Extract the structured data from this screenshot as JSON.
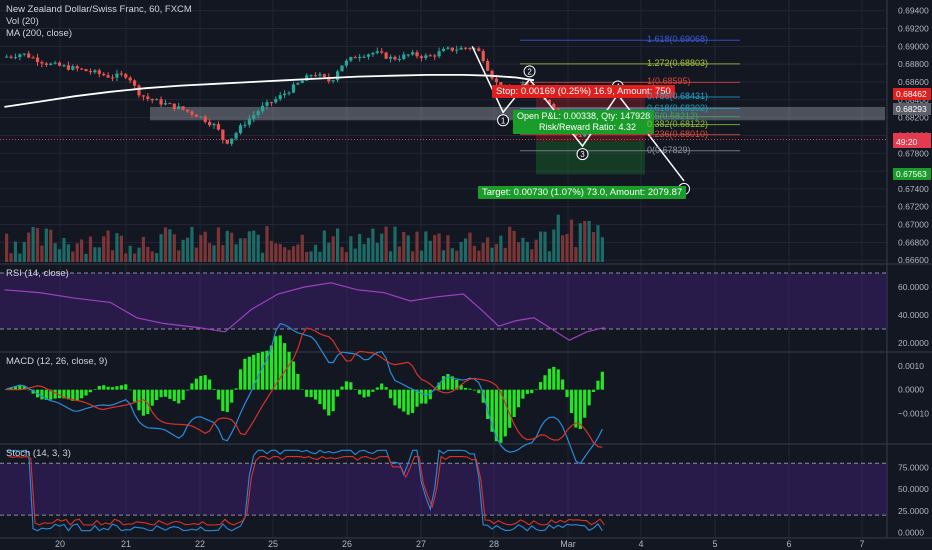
{
  "header": {
    "symbol_title": "New Zealand Dollar/Swiss Franc, 60, FXCM",
    "vol_label": "Vol (20)",
    "ma_label": "MA (200, close)"
  },
  "panes": {
    "rsi_label": "RSI (14, close)",
    "macd_label": "MACD (12, 26, close, 9)",
    "stoch_label": "Stoch (14, 3, 3)"
  },
  "trade": {
    "stop_label": "Stop: 0.00169 (0.25%) 16.9, Amount: 750",
    "open_label": "Open P&L: 0.00338, Qty: 147928",
    "ratio_label": "Risk/Reward Ratio: 4.32",
    "target_label": "Target: 0.00730 (1.07%) 73.0, Amount: 2079.87"
  },
  "fib_levels": [
    {
      "label": "1.618(0.69068)",
      "color": "#3b5bdb",
      "value": 0.69068
    },
    {
      "label": "1.272(0.68803)",
      "color": "#a7c53a",
      "value": 0.68803
    },
    {
      "label": "1(0.68595)",
      "color": "#e0443a",
      "value": 0.68595
    },
    {
      "label": "0.786(0.68431)",
      "color": "#26a2c9",
      "value": 0.68431
    },
    {
      "label": "0.618(0.68302)",
      "color": "#1ea0b5",
      "value": 0.68302
    },
    {
      "label": "0.5(0.68212)",
      "color": "#3aa96b",
      "value": 0.68212
    },
    {
      "label": "0.382(0.68122)",
      "color": "#8fbf3a",
      "value": 0.68122
    },
    {
      "label": "0.236(0.68010)",
      "color": "#d94a3a",
      "value": 0.6801
    },
    {
      "label": "0(0.67829)",
      "color": "#8a8e99",
      "value": 0.67829
    }
  ],
  "wave_labels": [
    "1",
    "2",
    "3",
    "4",
    "5"
  ],
  "price_tags": [
    {
      "label": "0.68462",
      "color": "#e01f1f",
      "value": 0.68462
    },
    {
      "label": "0.68293",
      "color": "#5d606b",
      "value": 0.68293
    },
    {
      "label": "0.67955",
      "color": "#e53950",
      "value": 0.67955
    },
    {
      "label": "49:20",
      "color": "#e53950",
      "value": 0.67925
    },
    {
      "label": "0.67563",
      "color": "#1a9c2b",
      "value": 0.67563
    }
  ],
  "chart_data": [
    {
      "type": "candlestick",
      "title": "New Zealand Dollar/Swiss Franc, 60, FXCM",
      "x_ticks": [
        "20",
        "21",
        "22",
        "25",
        "26",
        "27",
        "28",
        "Mar",
        "4",
        "5",
        "6",
        "7"
      ],
      "y_ticks": [
        0.694,
        0.69,
        0.686,
        0.682,
        0.678,
        0.674,
        0.67,
        0.666
      ],
      "y_tick_labels": [
        "0.69400",
        "0.69000",
        "0.68600",
        "0.68200",
        "0.67800",
        "0.67400",
        "0.67000",
        "0.66600"
      ],
      "y_extra_ticks": [
        0.692,
        0.688,
        0.684,
        0.68,
        0.676,
        0.672,
        0.668
      ],
      "y_extra_labels": [
        "0.69200",
        "0.68800",
        "0.68400",
        "0.68000",
        "0.67600",
        "0.67200",
        "0.66800"
      ],
      "ylim": [
        0.6658,
        0.6952
      ],
      "price_path": [
        [
          0,
          0.6888
        ],
        [
          2,
          0.6892
        ],
        [
          5,
          0.688
        ],
        [
          8,
          0.6875
        ],
        [
          10,
          0.6871
        ],
        [
          12,
          0.6866
        ],
        [
          14,
          0.6868
        ],
        [
          15,
          0.685
        ],
        [
          16,
          0.6842
        ],
        [
          18,
          0.6836
        ],
        [
          20,
          0.683
        ],
        [
          22,
          0.6822
        ],
        [
          24,
          0.681
        ],
        [
          25,
          0.6791
        ],
        [
          26,
          0.68
        ],
        [
          27,
          0.6812
        ],
        [
          29,
          0.683
        ],
        [
          31,
          0.6842
        ],
        [
          33,
          0.6856
        ],
        [
          35,
          0.687
        ],
        [
          37,
          0.686
        ],
        [
          38,
          0.6878
        ],
        [
          40,
          0.689
        ],
        [
          42,
          0.6893
        ],
        [
          44,
          0.6886
        ],
        [
          46,
          0.6891
        ],
        [
          48,
          0.6888
        ],
        [
          50,
          0.6896
        ],
        [
          52,
          0.6898
        ],
        [
          53,
          0.6899
        ],
        [
          54,
          0.6892
        ],
        [
          55,
          0.687
        ],
        [
          56,
          0.6855
        ],
        [
          57,
          0.6849
        ],
        [
          58,
          0.6851
        ],
        [
          59,
          0.6857
        ],
        [
          60,
          0.6852
        ],
        [
          61,
          0.6845
        ],
        [
          62,
          0.6835
        ],
        [
          63,
          0.6825
        ],
        [
          64,
          0.681
        ],
        [
          65,
          0.6798
        ],
        [
          66,
          0.6803
        ],
        [
          67,
          0.6805
        ],
        [
          68,
          0.6808
        ]
      ],
      "ma200_path": [
        [
          0,
          0.6832
        ],
        [
          4,
          0.6838
        ],
        [
          8,
          0.6844
        ],
        [
          12,
          0.6849
        ],
        [
          16,
          0.6853
        ],
        [
          20,
          0.6856
        ],
        [
          24,
          0.6858
        ],
        [
          28,
          0.686
        ],
        [
          32,
          0.6862
        ],
        [
          36,
          0.6864
        ],
        [
          40,
          0.6866
        ],
        [
          44,
          0.6867
        ],
        [
          48,
          0.6868
        ],
        [
          52,
          0.6868
        ],
        [
          55,
          0.6867
        ],
        [
          58,
          0.6865
        ],
        [
          60,
          0.6862
        ]
      ],
      "wave_points": [
        [
          53,
          0.69
        ],
        [
          56.5,
          0.6826
        ],
        [
          59.5,
          0.6863
        ],
        [
          65.5,
          0.6788
        ],
        [
          69.5,
          0.6846
        ],
        [
          77,
          0.6749
        ]
      ],
      "x_domain": [
        -0.5,
        100
      ]
    },
    {
      "type": "bar",
      "title": "Vol (20)",
      "note": "volume bars per hour"
    },
    {
      "type": "line",
      "title": "RSI (14, close)",
      "y_ticks": [
        60,
        40,
        20
      ],
      "y_tick_labels": [
        "60.0000",
        "40.0000",
        "20.0000"
      ],
      "bands": [
        70,
        30
      ],
      "ylim": [
        15,
        75
      ],
      "x": [
        0,
        4,
        8,
        12,
        15,
        18,
        22,
        25,
        28,
        31,
        34,
        37,
        40,
        43,
        46,
        49,
        52,
        54,
        56,
        58,
        60,
        62,
        64,
        66,
        68
      ],
      "values": [
        58,
        56,
        52,
        49,
        38,
        34,
        31,
        28,
        44,
        55,
        60,
        63,
        58,
        56,
        50,
        53,
        55,
        44,
        32,
        36,
        38,
        30,
        22,
        28,
        31
      ]
    },
    {
      "type": "line",
      "title": "MACD (12, 26, close, 9)",
      "y_ticks": [
        0.001,
        0.0,
        -0.001
      ],
      "y_tick_labels": [
        "0.0010",
        "0.0000",
        "−0.0010"
      ],
      "ylim": [
        -0.0022,
        0.0015
      ]
    },
    {
      "type": "line",
      "title": "Stoch (14, 3, 3)",
      "y_ticks": [
        75,
        50,
        25,
        0
      ],
      "y_tick_labels": [
        "75.0000",
        "50.0000",
        "25.0000",
        "0.0000"
      ],
      "bands": [
        80,
        20
      ],
      "ylim": [
        -3,
        100
      ]
    }
  ]
}
